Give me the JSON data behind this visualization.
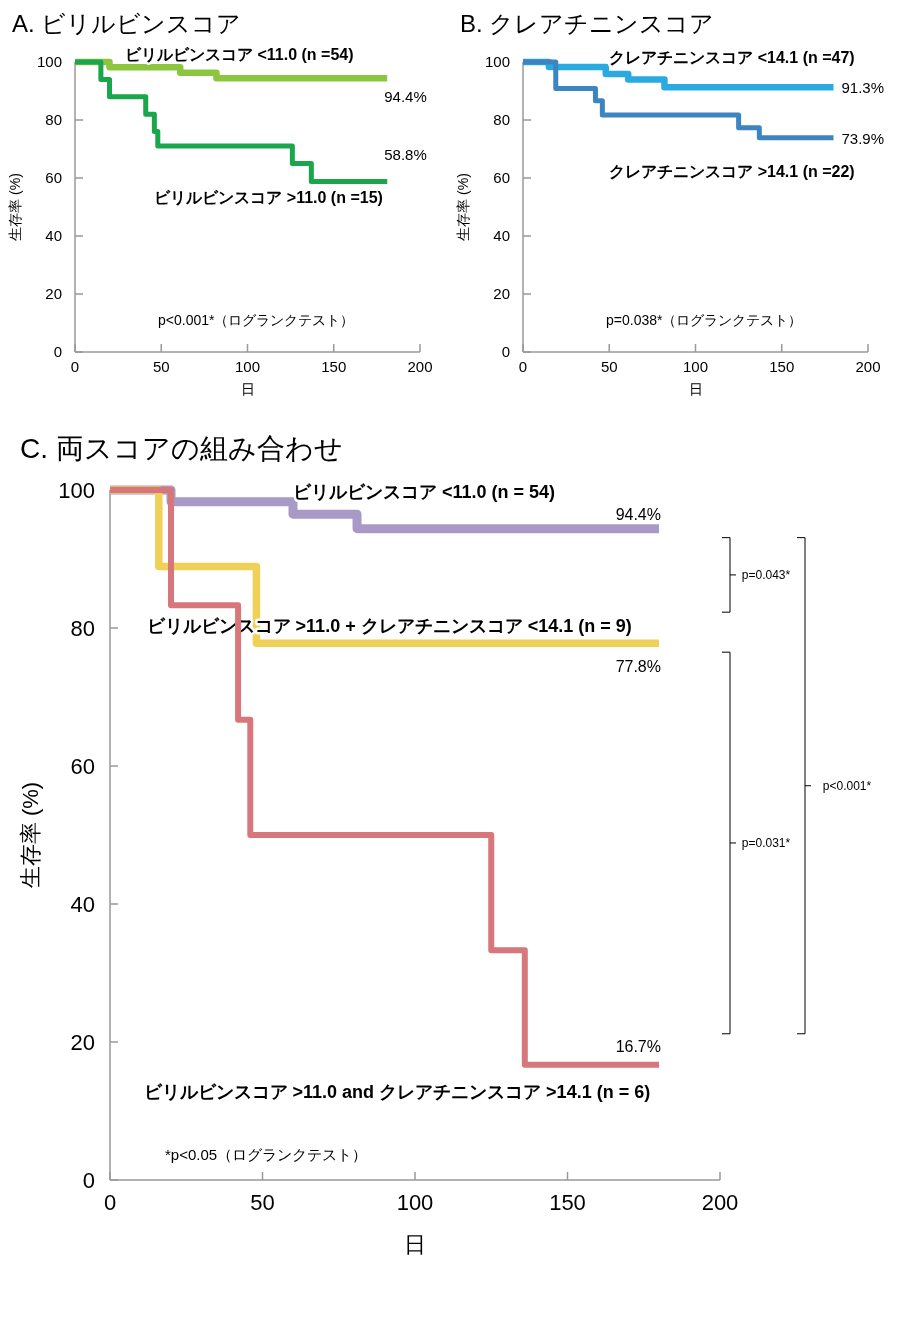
{
  "chart_data": [
    {
      "type": "step",
      "title": "A. ビリルビンスコア",
      "xlabel": "日",
      "ylabel": "生存率 (%)",
      "xlim": [
        0,
        200
      ],
      "xticks": [
        0,
        50,
        100,
        150,
        200
      ],
      "ylim": [
        0,
        100
      ],
      "yticks": [
        0,
        20,
        40,
        60,
        80,
        100
      ],
      "series": [
        {
          "name": "ビリルビンスコア <11.0 (n =54)",
          "color": "#8cc63e",
          "x": [
            0,
            20,
            61,
            82,
            181
          ],
          "values": [
            100,
            98.2,
            96.3,
            94.4,
            94.4
          ],
          "value_labels": [
            null,
            null,
            null,
            null,
            "94.4%"
          ]
        },
        {
          "name": "ビリルビンスコア >11.0 (n =15)",
          "color": "#1aa64a",
          "x": [
            0,
            15,
            20,
            41,
            46,
            48,
            126,
            137,
            181
          ],
          "values": [
            100,
            94,
            88,
            82,
            76,
            71,
            65,
            58.8,
            58.8
          ],
          "value_labels": [
            null,
            null,
            null,
            null,
            null,
            null,
            null,
            null,
            "58.8%"
          ]
        }
      ],
      "annotations": [
        "p<0.001*（ログランクテスト）"
      ]
    },
    {
      "type": "step",
      "title": "B. クレアチニンスコア",
      "xlabel": "日",
      "ylabel": "生存率 (%)",
      "xlim": [
        0,
        200
      ],
      "xticks": [
        0,
        50,
        100,
        150,
        200
      ],
      "ylim": [
        0,
        100
      ],
      "yticks": [
        0,
        20,
        40,
        60,
        80,
        100
      ],
      "series": [
        {
          "name": "クレアチニンスコア <14.1 (n =47)",
          "color": "#29abe2",
          "x": [
            0,
            15,
            48,
            61,
            82,
            180
          ],
          "values": [
            100,
            98.3,
            95.9,
            94,
            91.3,
            91.3
          ],
          "value_labels": [
            null,
            null,
            null,
            null,
            null,
            "91.3%"
          ]
        },
        {
          "name": "クレアチニンスコア >14.1 (n =22)",
          "color": "#3d85c0",
          "x": [
            0,
            19,
            42,
            46,
            125,
            137,
            180
          ],
          "values": [
            100,
            90.9,
            86.6,
            81.7,
            77.3,
            73.9,
            73.9
          ],
          "value_labels": [
            null,
            null,
            null,
            null,
            null,
            null,
            "73.9%"
          ]
        }
      ],
      "annotations": [
        "p=0.038*（ログランクテスト）"
      ]
    },
    {
      "type": "step",
      "title": "C. 両スコアの組み合わせ",
      "xlabel": "日",
      "ylabel": "生存率 (%)",
      "xlim": [
        0,
        200
      ],
      "xticks": [
        0,
        50,
        100,
        150,
        200
      ],
      "ylim": [
        0,
        100
      ],
      "yticks": [
        0,
        20,
        40,
        60,
        80,
        100
      ],
      "series": [
        {
          "name": "ビリルビンスコア <11.0 (n = 54)",
          "color": "#a899c6",
          "x": [
            0,
            20,
            60,
            81,
            180
          ],
          "values": [
            100,
            98.3,
            96.5,
            94.4,
            94.4
          ],
          "value_labels": [
            null,
            null,
            null,
            null,
            "94.4%"
          ]
        },
        {
          "name": "ビリルビンスコア >11.0 + クレアチニンスコア <14.1 (n = 9)",
          "color": "#f0d157",
          "x": [
            0,
            16,
            48,
            180
          ],
          "values": [
            100,
            88.9,
            77.8,
            77.8
          ],
          "value_labels": [
            null,
            null,
            null,
            "77.8%"
          ]
        },
        {
          "name": "ビリルビンスコア >11.0 and クレアチニンスコア >14.1 (n = 6)",
          "color": "#d8777b",
          "x": [
            0,
            20,
            42,
            46,
            125,
            136,
            180
          ],
          "values": [
            100,
            83.3,
            66.7,
            50,
            33.3,
            16.7,
            16.7
          ],
          "value_labels": [
            null,
            null,
            null,
            null,
            null,
            null,
            "16.7%"
          ]
        }
      ],
      "annotations": [
        "*p<0.05（ログランクテスト）",
        "p=0.043*",
        "p=0.031*",
        "p<0.001*"
      ]
    }
  ]
}
